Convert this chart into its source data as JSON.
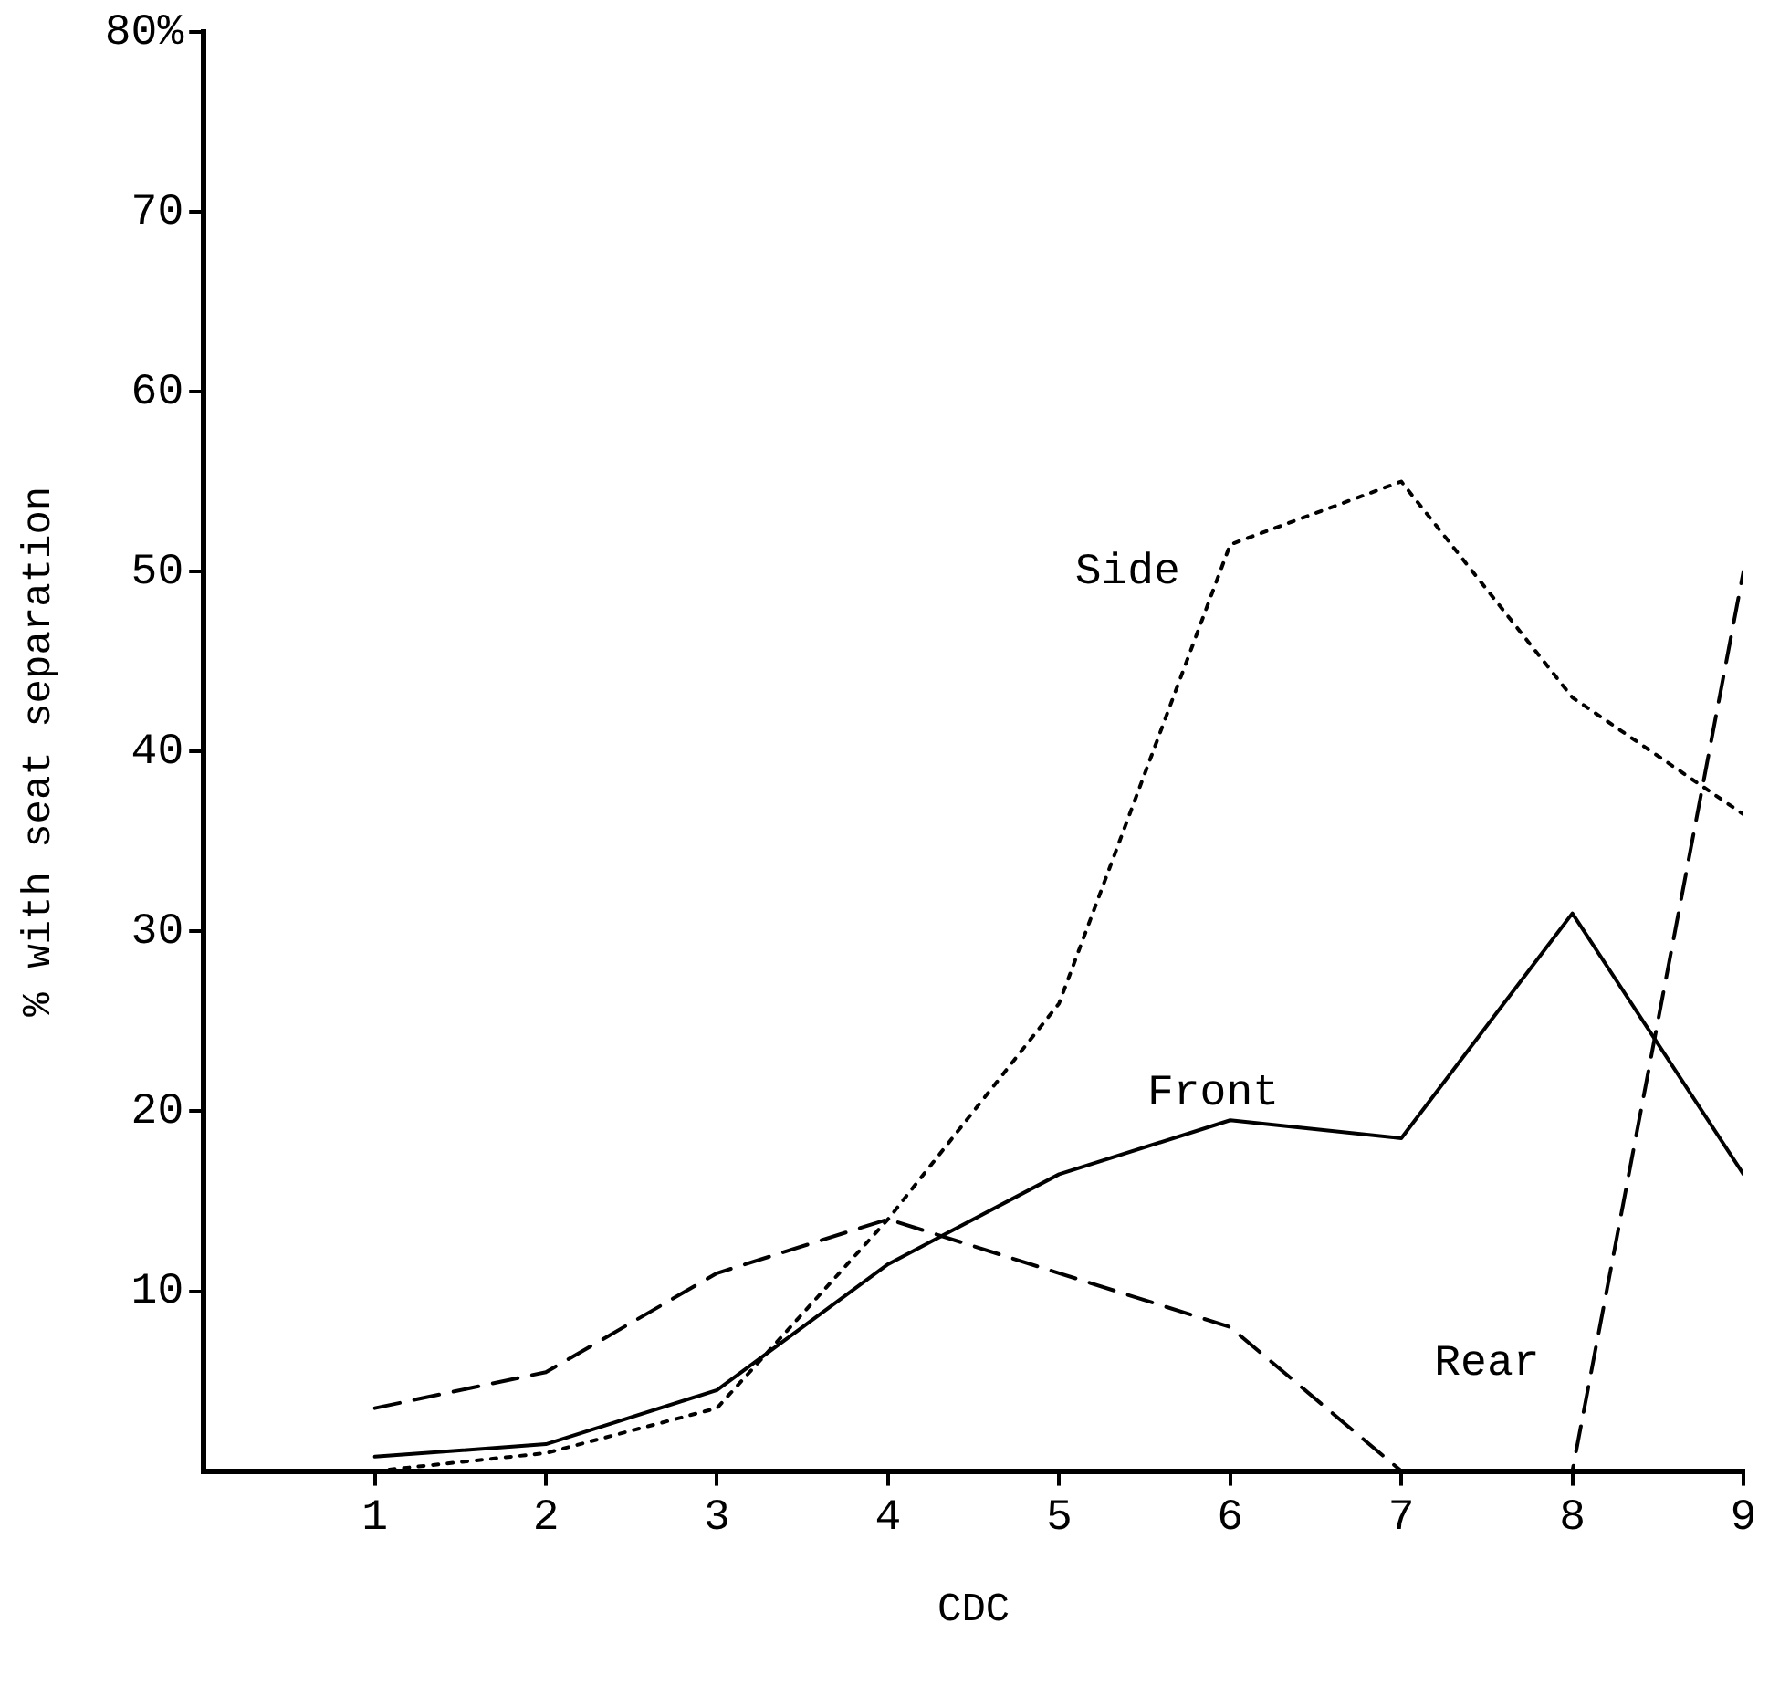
{
  "chart_data": {
    "type": "line",
    "xlabel": "CDC",
    "ylabel": "% with seat separation",
    "x": [
      1,
      2,
      3,
      4,
      5,
      6,
      7,
      8,
      9
    ],
    "xlim": [
      0,
      9
    ],
    "xticks": [
      1,
      2,
      3,
      4,
      5,
      6,
      7,
      8,
      9
    ],
    "ylim": [
      0,
      80
    ],
    "yticks": [
      10,
      20,
      30,
      40,
      50,
      60,
      70,
      {
        "value": 80,
        "label": "80%"
      }
    ],
    "grid": false,
    "legend": false,
    "marker": "none",
    "series": [
      {
        "name": "Front",
        "color": "#000000",
        "line_style": "solid",
        "values": [
          0.8,
          1.5,
          4.5,
          11.5,
          16.5,
          19.5,
          18.5,
          31,
          16.5
        ]
      },
      {
        "name": "Side",
        "color": "#000000",
        "line_style": "dotted",
        "values": [
          0,
          1,
          3.5,
          14,
          26,
          51.5,
          55,
          43,
          36.5
        ]
      },
      {
        "name": "Rear",
        "color": "#000000",
        "line_style": "dashed",
        "values": [
          3.5,
          5.5,
          11,
          14,
          11,
          8,
          0,
          0,
          50
        ]
      }
    ]
  }
}
